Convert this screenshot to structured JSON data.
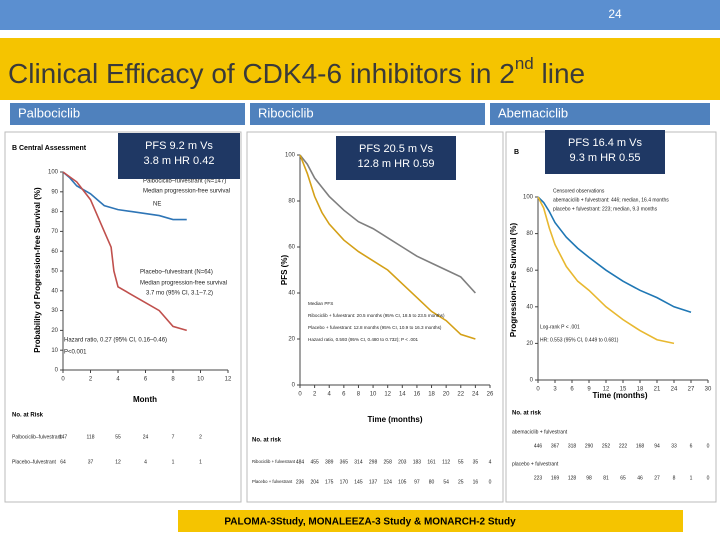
{
  "slide_number": "24",
  "title": {
    "text": "Clinical Efficacy of CDK4-6 inhibitors in 2",
    "superscript": "nd",
    "suffix": "  line"
  },
  "panels": [
    {
      "header": "Palbociclib",
      "callout": [
        "PFS 9.2 m Vs",
        "3.8 m HR 0.42"
      ],
      "plot": {
        "label": "B  Central Assessment",
        "ylabel": "Probability of Progression-free Survival (%)",
        "xlabel": "Month",
        "ylim": [
          0,
          100
        ],
        "xlim": [
          0,
          12
        ],
        "yticks": [
          0,
          10,
          20,
          30,
          40,
          50,
          60,
          70,
          80,
          90,
          100
        ],
        "xticks": [
          0,
          2,
          4,
          6,
          8,
          10,
          12
        ],
        "series": [
          {
            "color": "#2e75b6",
            "x": [
              0,
              0.5,
              1,
              2,
              2.5,
              3,
              3.5,
              4,
              5,
              6,
              7,
              8,
              9
            ],
            "y": [
              100,
              97,
              93,
              89,
              86,
              83,
              82,
              81,
              80,
              79,
              78,
              76,
              76
            ]
          },
          {
            "color": "#c0504d",
            "x": [
              0,
              1,
              2,
              2.5,
              3,
              3.5,
              3.7,
              4,
              5,
              6,
              7,
              8,
              9
            ],
            "y": [
              100,
              95,
              86,
              78,
              70,
              62,
              50,
              42,
              38,
              34,
              30,
              22,
              20
            ]
          }
        ],
        "annotations": [
          "Palbociclib–fulvestrant (N=147)",
          "Median progression-free survival",
          "NE",
          "Placebo–fulvestrant (N=64)",
          "Median progression-free survival",
          "3.7 mo (95% CI, 3.1–7.2)",
          "Hazard ratio, 0.27 (95% CI, 0.16–0.46)",
          "P<0.001"
        ],
        "risk": {
          "title": "No. at Risk",
          "rows": [
            {
              "name": "Palbociclib–fulvestrant",
              "values": [
                147,
                118,
                55,
                24,
                7,
                2
              ]
            },
            {
              "name": "Placebo–fulvestrant",
              "values": [
                64,
                37,
                12,
                4,
                1,
                1
              ]
            }
          ]
        }
      }
    },
    {
      "header": "Ribociclib",
      "callout": [
        "PFS 20.5 m Vs",
        "12.8 m HR 0.59"
      ],
      "plot": {
        "label": "",
        "ylabel": "PFS (%)",
        "xlabel": "Time (months)",
        "ylim": [
          0,
          100
        ],
        "xlim": [
          0,
          26
        ],
        "yticks": [
          0,
          20,
          40,
          60,
          80,
          100
        ],
        "xticks": [
          0,
          2,
          4,
          6,
          8,
          10,
          12,
          14,
          16,
          18,
          20,
          22,
          24,
          26
        ],
        "series": [
          {
            "color": "#7f7f7f",
            "x": [
              0,
              1,
              2,
              3,
              4,
              6,
              8,
              10,
              12,
              14,
              16,
              18,
              20,
              22,
              24
            ],
            "y": [
              100,
              96,
              90,
              86,
              82,
              76,
              71,
              68,
              64,
              60,
              56,
              53,
              50,
              47,
              40
            ]
          },
          {
            "color": "#d4a017",
            "x": [
              0,
              1,
              2,
              3,
              4,
              6,
              8,
              10,
              12,
              14,
              16,
              18,
              20,
              22,
              24
            ],
            "y": [
              100,
              92,
              82,
              75,
              70,
              63,
              58,
              54,
              50,
              44,
              38,
              32,
              28,
              22,
              20
            ]
          }
        ],
        "annotations": [
          "Median PFS",
          "Ribociclib + fulvestrant: 20.5 months (95% CI, 18.5 to 23.5 months)",
          "Placebo + fulvestrant: 12.8 months (95% CI, 10.9 to 16.3 months)",
          "Hazard ratio, 0.593 (95% CI, 0.480 to 0.732); P < .001"
        ],
        "risk": {
          "title": "No. at risk",
          "rows": [
            {
              "name": "Ribociclib + fulvestrant",
              "values": [
                484,
                455,
                389,
                365,
                314,
                298,
                258,
                203,
                183,
                161,
                112,
                55,
                35,
                4
              ]
            },
            {
              "name": "Placebo + fulvestrant",
              "values": [
                236,
                204,
                175,
                170,
                145,
                137,
                124,
                105,
                97,
                80,
                54,
                25,
                16,
                0
              ]
            }
          ]
        }
      }
    },
    {
      "header": "Abemaciclib",
      "callout": [
        "PFS 16.4 m Vs",
        "9.3 m HR 0.55"
      ],
      "plot": {
        "label": "B",
        "ylabel": "Progression-Free Survival (%)",
        "xlabel": "Time (months)",
        "ylim": [
          0,
          100
        ],
        "xlim": [
          0,
          30
        ],
        "yticks": [
          0,
          20,
          40,
          60,
          80,
          100
        ],
        "xticks": [
          0,
          3,
          6,
          9,
          12,
          15,
          18,
          21,
          24,
          27,
          30
        ],
        "series": [
          {
            "color": "#1f77b4",
            "x": [
              0,
              1,
              2,
              3,
              5,
              7,
              9,
              12,
              15,
              18,
              21,
              24,
              27
            ],
            "y": [
              100,
              97,
              92,
              86,
              78,
              72,
              67,
              60,
              54,
              49,
              45,
              40,
              37
            ]
          },
          {
            "color": "#e8b830",
            "x": [
              0,
              1,
              2,
              3,
              5,
              7,
              9,
              12,
              15,
              18,
              21,
              24
            ],
            "y": [
              100,
              94,
              83,
              74,
              62,
              54,
              49,
              40,
              33,
              27,
              22,
              20
            ]
          }
        ],
        "annotations": [
          "Censored observations",
          "abemaciclib + fulvestrant: 446; median, 16.4 months",
          "placebo + fulvestrant: 223; median, 9.3 months",
          "Log-rank P < .001",
          "HR: 0.553 (95% CI, 0.449 to 0.681)"
        ],
        "risk": {
          "title": "No. at risk",
          "rows": [
            {
              "name": "abemaciclib + fulvestrant",
              "values": [
                446,
                367,
                318,
                290,
                252,
                222,
                168,
                94,
                33,
                6,
                0
              ]
            },
            {
              "name": "placebo + fulvestrant",
              "values": [
                223,
                169,
                128,
                98,
                81,
                65,
                46,
                27,
                8,
                1,
                0
              ]
            }
          ]
        }
      }
    }
  ],
  "footer": "PALOMA-3Study, MONALEEZA-3 Study & MONARCH-2 Study"
}
